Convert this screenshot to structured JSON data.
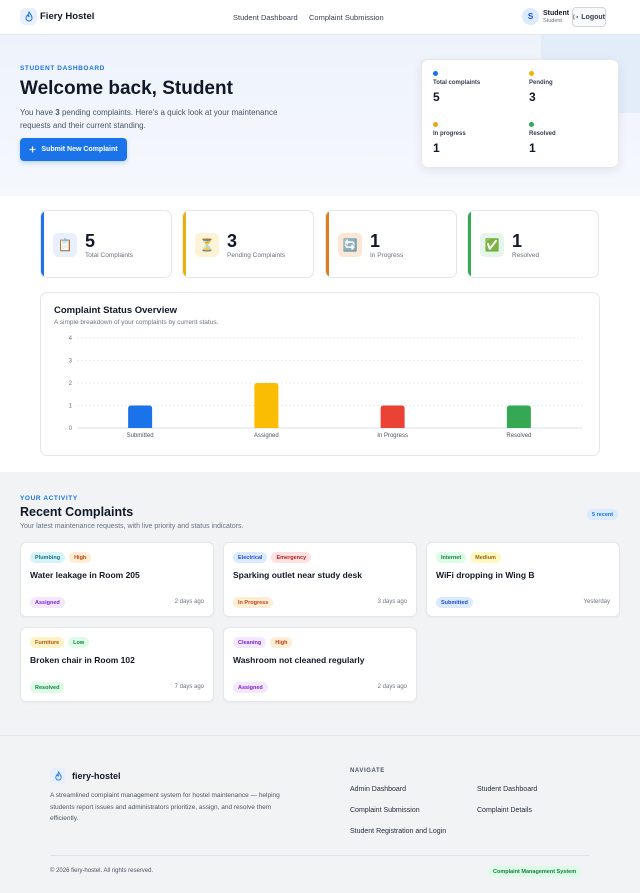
{
  "header": {
    "brand": "Fiery Hostel",
    "nav": [
      "Student Dashboard",
      "Complaint Submission"
    ],
    "user": {
      "initial": "S",
      "name": "Student",
      "role": "Student"
    },
    "logout_label": "Logout"
  },
  "hero": {
    "eyebrow": "STUDENT DASHBOARD",
    "title": "Welcome back, Student",
    "desc_prefix": "You have ",
    "pending_count": "3",
    "desc_suffix": " pending complaints. Here's a quick look at your maintenance requests and their current standing.",
    "submit_label": "Submit New Complaint"
  },
  "summary": [
    {
      "label": "Total complaints",
      "value": "5",
      "color": "#1a73e8"
    },
    {
      "label": "Pending",
      "value": "3",
      "color": "#f4b400"
    },
    {
      "label": "In progress",
      "value": "1",
      "color": "#e6a817"
    },
    {
      "label": "Resolved",
      "value": "1",
      "color": "#34a853"
    }
  ],
  "stats": [
    {
      "value": "5",
      "label": "Total Complaints",
      "icon": "clipboard-icon",
      "glyph": "📋",
      "accent": "#1a73e8",
      "bg": "#e8f0fe"
    },
    {
      "value": "3",
      "label": "Pending Complaints",
      "icon": "hourglass-icon",
      "glyph": "⏳",
      "accent": "#e8b20e",
      "bg": "#fdf3d7"
    },
    {
      "value": "1",
      "label": "In Progress",
      "icon": "refresh-icon",
      "glyph": "🔄",
      "accent": "#e07b1f",
      "bg": "#fbe7d6"
    },
    {
      "value": "1",
      "label": "Resolved",
      "icon": "check-icon",
      "glyph": "✅",
      "accent": "#34a853",
      "bg": "#e6f4ea"
    }
  ],
  "chart": {
    "title": "Complaint Status Overview",
    "subtitle": "A simple breakdown of your complaints by current status."
  },
  "chart_data": {
    "type": "bar",
    "categories": [
      "Submitted",
      "Assigned",
      "In Progress",
      "Resolved"
    ],
    "values": [
      1,
      2,
      1,
      1
    ],
    "colors": [
      "#1a73e8",
      "#fbbc04",
      "#ea4335",
      "#34a853"
    ],
    "yticks": [
      "0",
      "1",
      "2",
      "3",
      "4"
    ],
    "ylim": [
      0,
      4
    ],
    "grid": true,
    "legend": "none"
  },
  "activity": {
    "eyebrow": "YOUR ACTIVITY",
    "title": "Recent Complaints",
    "subtitle": "Your latest maintenance requests, with live priority and status indicators.",
    "count_badge": "5 recent"
  },
  "complaints": [
    {
      "category": "Plumbing",
      "priority": "High",
      "title": "Water leakage in Room 205",
      "status": "Assigned",
      "time": "2 days ago"
    },
    {
      "category": "Electrical",
      "priority": "Emergency",
      "title": "Sparking outlet near study desk",
      "status": "In Progress",
      "time": "3 days ago"
    },
    {
      "category": "Internet",
      "priority": "Medium",
      "title": "WiFi dropping in Wing B",
      "status": "Submitted",
      "time": "Yesterday"
    },
    {
      "category": "Furniture",
      "priority": "Low",
      "title": "Broken chair in Room 102",
      "status": "Resolved",
      "time": "7 days ago"
    },
    {
      "category": "Cleaning",
      "priority": "High",
      "title": "Washroom not cleaned regularly",
      "status": "Assigned",
      "time": "2 days ago"
    }
  ],
  "tag_colors": {
    "Plumbing": [
      "#d7f3f7",
      "#0e7490"
    ],
    "Electrical": [
      "#dbeafe",
      "#1d4ed8"
    ],
    "Internet": [
      "#dcfce7",
      "#15803d"
    ],
    "Furniture": [
      "#fef3c7",
      "#b45309"
    ],
    "Cleaning": [
      "#f3e8ff",
      "#7e22ce"
    ],
    "High": [
      "#ffedd5",
      "#c2410c"
    ],
    "Emergency": [
      "#fee2e2",
      "#b91c1c"
    ],
    "Medium": [
      "#fef9c3",
      "#a16207"
    ],
    "Low": [
      "#dcfce7",
      "#15803d"
    ],
    "Assigned": [
      "#f3e8ff",
      "#7e22ce"
    ],
    "In Progress": [
      "#ffedd5",
      "#c2410c"
    ],
    "Submitted": [
      "#dbeafe",
      "#1d4ed8"
    ],
    "Resolved": [
      "#dcfce7",
      "#15803d"
    ]
  },
  "footer": {
    "brand": "fiery-hostel",
    "description": "A streamlined complaint management system for hostel maintenance — helping students report issues and administrators prioritize, assign, and resolve them efficiently.",
    "nav_heading": "NAVIGATE",
    "links": [
      "Admin Dashboard",
      "Student Dashboard",
      "Complaint Submission",
      "Complaint Details",
      "Student Registration and Login"
    ],
    "copyright": "© 2026 fiery-hostel. All rights reserved.",
    "badge": "Complaint Management System"
  }
}
